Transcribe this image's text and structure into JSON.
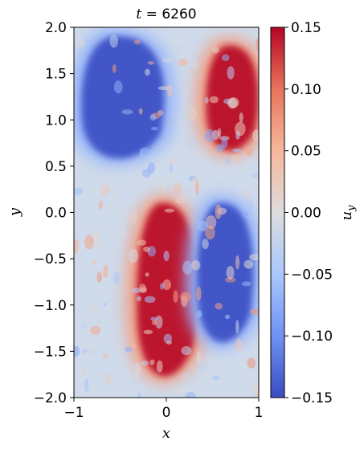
{
  "chart_data": {
    "type": "heatmap",
    "title": "t = 6260",
    "title_var": "t",
    "title_value": "6260",
    "xlabel": "x",
    "ylabel": "y",
    "xlim": [
      -1,
      1
    ],
    "ylim": [
      -2,
      2
    ],
    "x_ticks": [
      "−1",
      "0",
      "1"
    ],
    "y_ticks": [
      "−2.0",
      "−1.5",
      "−1.0",
      "−0.5",
      "0.0",
      "0.5",
      "1.0",
      "1.5",
      "2.0"
    ],
    "colorbar": {
      "label": "u_y",
      "label_main": "u",
      "label_sub": "y",
      "vmin": -0.15,
      "vmax": 0.15,
      "ticks": [
        "−0.15",
        "−0.10",
        "−0.05",
        "0.00",
        "0.05",
        "0.10",
        "0.15"
      ],
      "colormap": "coolwarm",
      "colors": [
        "#3b4cc0",
        "#6f92f3",
        "#aac7fd",
        "#dddcdc",
        "#f7b89c",
        "#e7745b",
        "#b40426"
      ]
    },
    "features": [
      {
        "sign": "negative",
        "value": -0.15,
        "description": "blue band, upper-left",
        "x": [
          -0.9,
          0.0
        ],
        "y": [
          0.5,
          1.9
        ]
      },
      {
        "sign": "positive",
        "value": 0.15,
        "description": "red band, upper-right",
        "x": [
          0.45,
          1.0
        ],
        "y": [
          0.6,
          1.8
        ]
      },
      {
        "sign": "positive",
        "value": 0.15,
        "description": "red band, center-left",
        "x": [
          -0.3,
          0.35
        ],
        "y": [
          -1.9,
          0.1
        ]
      },
      {
        "sign": "negative",
        "value": -0.15,
        "description": "blue band, center-right",
        "x": [
          0.35,
          0.95
        ],
        "y": [
          -1.5,
          0.1
        ]
      }
    ]
  }
}
